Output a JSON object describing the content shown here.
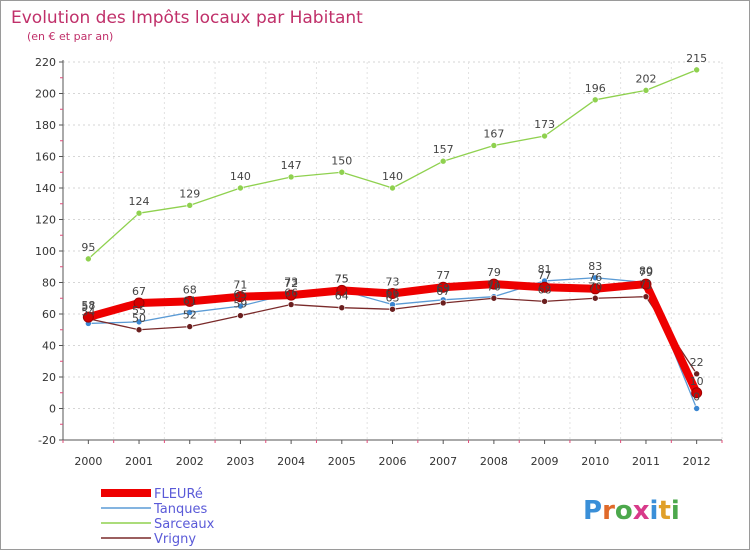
{
  "chart_data": {
    "type": "line",
    "title": "Evolution des Impôts locaux par Habitant",
    "subtitle": "(en € et par an)",
    "xlabel": "",
    "ylabel": "",
    "ylim": [
      -20,
      220
    ],
    "y_ticks": [
      -20,
      0,
      20,
      40,
      60,
      80,
      100,
      120,
      140,
      160,
      180,
      200,
      220
    ],
    "categories": [
      "2000",
      "2001",
      "2002",
      "2003",
      "2004",
      "2005",
      "2006",
      "2007",
      "2008",
      "2009",
      "2010",
      "2011",
      "2012"
    ],
    "grid": true,
    "legend_position": "bottom-left",
    "series": [
      {
        "name": "Sarceaux",
        "color": "#8fd14f",
        "marker_color": "#8fd14f",
        "width": "thin",
        "values": [
          95,
          124,
          129,
          140,
          147,
          150,
          140,
          157,
          167,
          173,
          196,
          202,
          215
        ]
      },
      {
        "name": "Tanques",
        "color": "#5b9bd5",
        "marker_color": "#3a86d1",
        "width": "thin",
        "values": [
          54,
          55,
          61,
          65,
          73,
          75,
          66,
          69,
          71,
          81,
          83,
          80,
          0
        ]
      },
      {
        "name": "Vrigny",
        "color": "#7a2a2a",
        "marker_color": "#6b1f1f",
        "width": "thin",
        "values": [
          57,
          50,
          52,
          59,
          66,
          64,
          63,
          67,
          70,
          68,
          70,
          71,
          22
        ]
      },
      {
        "name": "FLEURé",
        "color": "#ee0000",
        "marker_color": "#d40000",
        "width": "thick",
        "values": [
          58,
          67,
          68,
          71,
          72,
          75,
          73,
          77,
          79,
          77,
          76,
          79,
          10
        ]
      }
    ],
    "legend_order": [
      "FLEURé",
      "Tanques",
      "Sarceaux",
      "Vrigny"
    ]
  },
  "brand": {
    "logo_text": "Proxiti"
  }
}
